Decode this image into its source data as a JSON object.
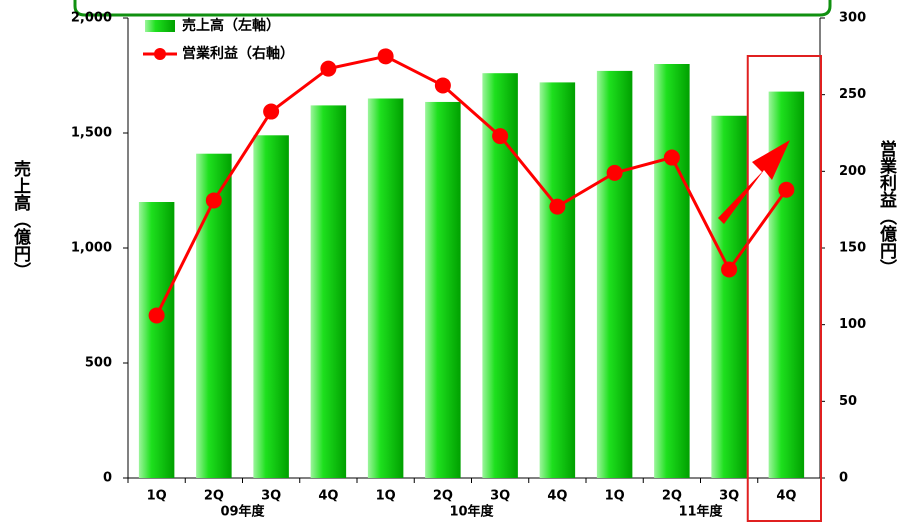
{
  "chart_data": {
    "type": "bar",
    "categories": [
      "1Q",
      "2Q",
      "3Q",
      "4Q",
      "1Q",
      "2Q",
      "3Q",
      "4Q",
      "1Q",
      "2Q",
      "3Q",
      "4Q"
    ],
    "groups": [
      "09年度",
      "10年度",
      "11年度"
    ],
    "series": [
      {
        "name": "売上高（左軸）",
        "type": "bar",
        "color": "#00cc00",
        "values": [
          1200,
          1410,
          1490,
          1620,
          1650,
          1635,
          1760,
          1720,
          1770,
          1800,
          1575,
          1680
        ]
      },
      {
        "name": "営業利益（右軸）",
        "type": "line",
        "axis": "y2",
        "color": "#ff0000",
        "values": [
          106,
          181,
          239,
          267,
          275,
          256,
          223,
          177,
          199,
          209,
          136,
          188
        ]
      }
    ],
    "ylabel": "売上高（億円）",
    "y2label": "営業利益（億円）",
    "ylim": [
      0,
      2000
    ],
    "yticks": [
      0,
      500,
      {
        "value": 1000,
        "label": "1,000"
      },
      {
        "value": 1500,
        "label": "1,500"
      },
      {
        "value": 2000,
        "label": "2,000"
      }
    ],
    "y2lim": [
      0,
      300
    ],
    "y2ticks": [
      0,
      50,
      100,
      150,
      200,
      250,
      300
    ],
    "grid": false,
    "legend": "top-left"
  }
}
